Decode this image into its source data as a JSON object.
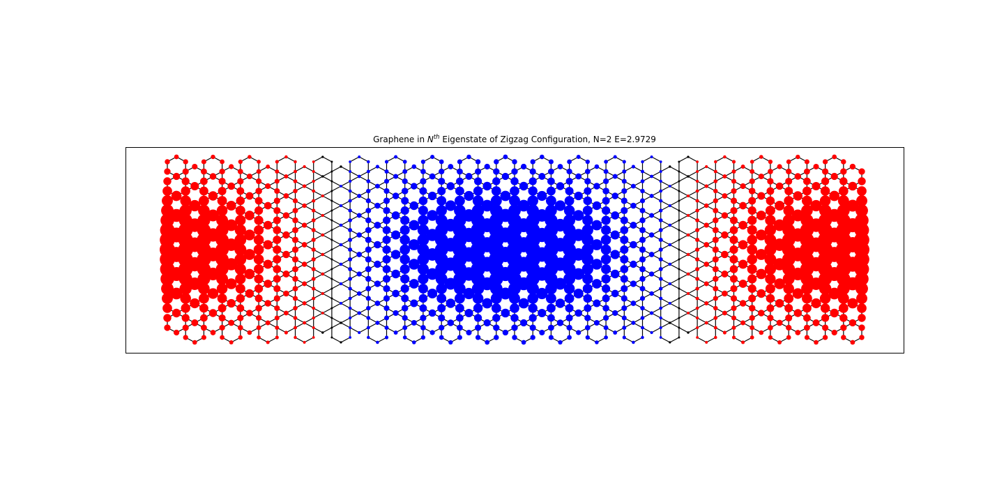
{
  "chart_data": {
    "type": "scatter",
    "title_prefix": "Graphene in ",
    "title_symbol": "N",
    "title_superscript": "th",
    "title_suffix": " Eigenstate of Zigzag Configuration, N=2 E=2.9729",
    "xlabel": "",
    "ylabel": "",
    "axes_ticks": "none",
    "grid": false,
    "lattice": {
      "structure": "hexagonal zigzag ribbon",
      "hexagon_columns": 38,
      "hexagon_rows": 9,
      "bond_color": "#000000"
    },
    "amplitude": {
      "positive_color": "#0000ff",
      "negative_color": "#ff0000",
      "longitudinal_nodes_at_column": [
        9,
        28
      ],
      "note": "blue lobe centered in the middle; red lobes at both ends; amplitude largest at ribbon center rows"
    },
    "colors": {
      "positive": "#0000ff",
      "negative": "#ff0000",
      "bonds": "#000000",
      "frame": "#000000"
    }
  }
}
